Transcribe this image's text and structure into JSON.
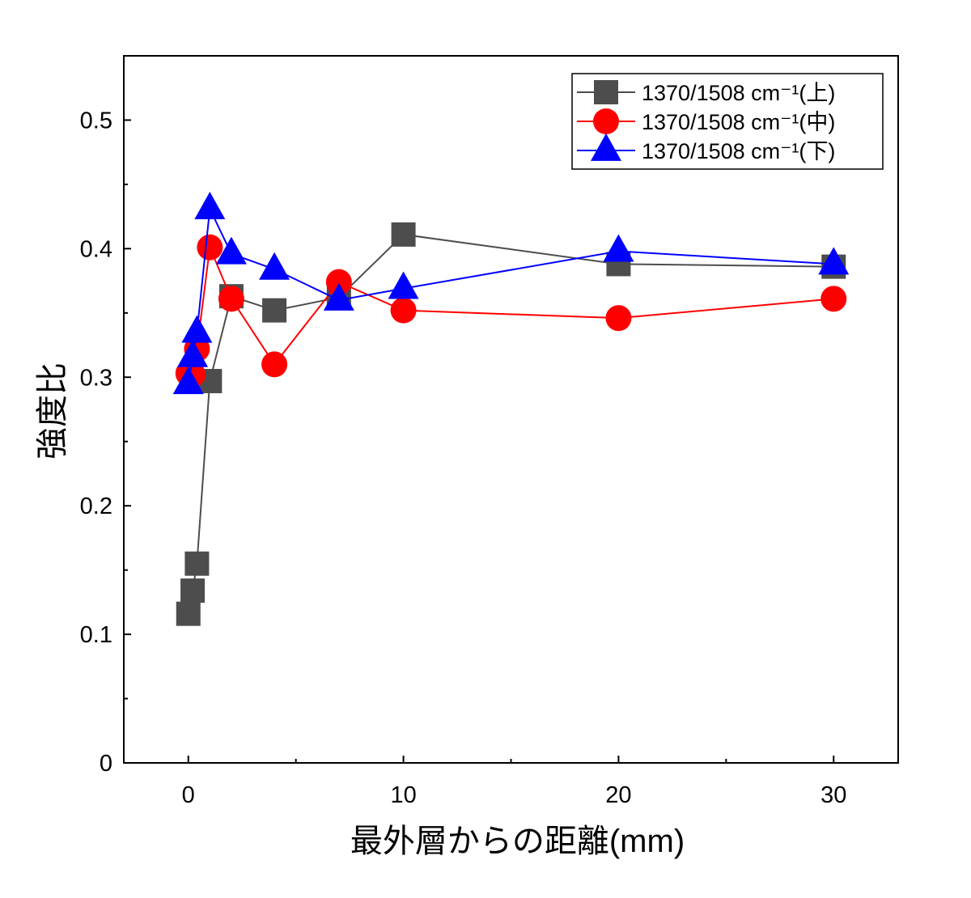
{
  "chart_data": {
    "type": "scatter",
    "xlabel": "最外層からの距離(mm)",
    "ylabel": "強度比",
    "xlim": [
      -3,
      33
    ],
    "ylim": [
      0,
      0.55
    ],
    "x_ticks": [
      0,
      10,
      20,
      30
    ],
    "x_tick_labels": [
      "0",
      "10",
      "20",
      "30"
    ],
    "y_ticks": [
      0,
      0.1,
      0.2,
      0.3,
      0.4,
      0.5
    ],
    "y_tick_labels": [
      "0",
      "0.1",
      "0.2",
      "0.3",
      "0.4",
      "0.5"
    ],
    "grid": false,
    "legend_position": "top-right",
    "series": [
      {
        "name": "1370/1508 cm⁻¹(上)",
        "color": "#4d4d4d",
        "marker": "square",
        "x": [
          0,
          0.2,
          0.4,
          1,
          2,
          4,
          7,
          10,
          20,
          30
        ],
        "y": [
          0.116,
          0.134,
          0.155,
          0.297,
          0.363,
          0.352,
          0.362,
          0.411,
          0.388,
          0.386
        ]
      },
      {
        "name": "1370/1508 cm⁻¹(中)",
        "color": "#ff0000",
        "marker": "circle",
        "x": [
          0,
          0.2,
          0.4,
          1,
          2,
          4,
          7,
          10,
          20,
          30
        ],
        "y": [
          0.303,
          0.302,
          0.322,
          0.401,
          0.361,
          0.31,
          0.374,
          0.352,
          0.346,
          0.361
        ]
      },
      {
        "name": "1370/1508 cm⁻¹(下)",
        "color": "#0000ff",
        "marker": "triangle",
        "x": [
          0,
          0.2,
          0.4,
          1,
          2,
          4,
          7,
          10,
          20,
          30
        ],
        "y": [
          0.295,
          0.316,
          0.335,
          0.431,
          0.396,
          0.384,
          0.36,
          0.369,
          0.398,
          0.388
        ]
      }
    ]
  }
}
